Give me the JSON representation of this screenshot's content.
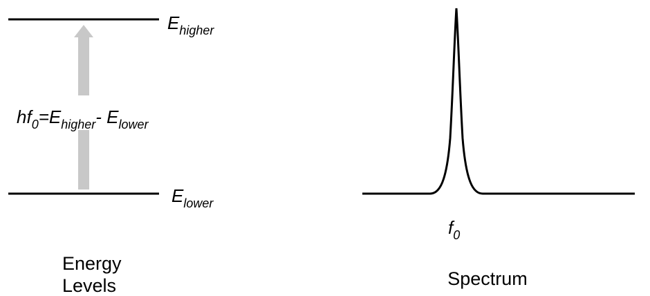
{
  "energy_levels": {
    "upper": {
      "symbol": "E",
      "subscript": "higher"
    },
    "lower": {
      "symbol": "E",
      "subscript": "lower"
    },
    "transition": [
      {
        "text": "hf"
      },
      {
        "sub": "0"
      },
      {
        "text": "="
      },
      {
        "text": "E"
      },
      {
        "sub": "higher"
      },
      {
        "text": "- "
      },
      {
        "text": "E"
      },
      {
        "sub": "lower"
      }
    ],
    "caption": [
      "Energy",
      "Levels"
    ]
  },
  "spectrum": {
    "peak_label": {
      "symbol": "f",
      "subscript": "0"
    },
    "caption": "Spectrum"
  }
}
